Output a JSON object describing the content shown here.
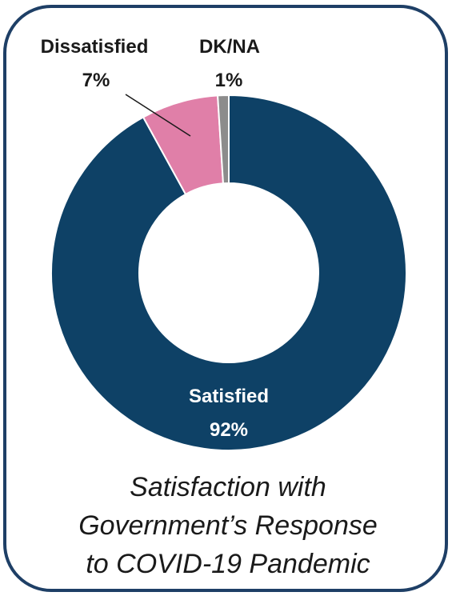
{
  "chart_data": {
    "type": "pie",
    "variant": "donut",
    "title_lines": [
      "Satisfaction with",
      "Government’s Response",
      "to COVID-19 Pandemic"
    ],
    "slices": [
      {
        "label": "Satisfied",
        "value": 92,
        "value_label": "92%",
        "color": "#0e4166"
      },
      {
        "label": "Dissatisfied",
        "value": 7,
        "value_label": "7%",
        "color": "#e07fa8"
      },
      {
        "label": "DK/NA",
        "value": 1,
        "value_label": "1%",
        "color": "#8c8c8c"
      }
    ],
    "colors": {
      "border": "#1e3f66",
      "slice_stroke": "#ffffff",
      "label_light": "#ffffff",
      "label_dark": "#1a1a1a"
    }
  }
}
